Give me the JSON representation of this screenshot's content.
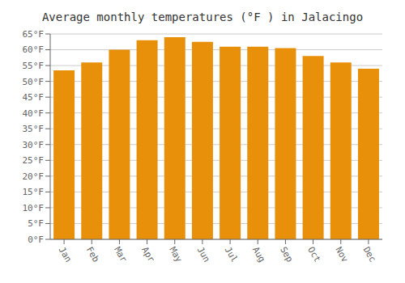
{
  "chart_data": {
    "type": "bar",
    "title": "Average monthly temperatures (°F ) in Jalacingo",
    "categories": [
      "Jan",
      "Feb",
      "Mar",
      "Apr",
      "May",
      "Jun",
      "Jul",
      "Aug",
      "Sep",
      "Oct",
      "Nov",
      "Dec"
    ],
    "values": [
      53.5,
      56.0,
      60.0,
      63.0,
      64.0,
      62.5,
      61.0,
      61.0,
      60.5,
      58.0,
      56.0,
      54.0
    ],
    "color": "#E8900A",
    "ylim": [
      0,
      65
    ],
    "yticks": [
      {
        "value": 0,
        "label": "0°F"
      },
      {
        "value": 5,
        "label": "5°F"
      },
      {
        "value": 10,
        "label": "10°F"
      },
      {
        "value": 15,
        "label": "15°F"
      },
      {
        "value": 20,
        "label": "20°F"
      },
      {
        "value": 25,
        "label": "25°F"
      },
      {
        "value": 30,
        "label": "30°F"
      },
      {
        "value": 35,
        "label": "35°F"
      },
      {
        "value": 40,
        "label": "40°F"
      },
      {
        "value": 45,
        "label": "45°F"
      },
      {
        "value": 50,
        "label": "50°F"
      },
      {
        "value": 55,
        "label": "55°F"
      },
      {
        "value": 60,
        "label": "60°F"
      },
      {
        "value": 65,
        "label": "65°F"
      }
    ],
    "grid": true
  }
}
